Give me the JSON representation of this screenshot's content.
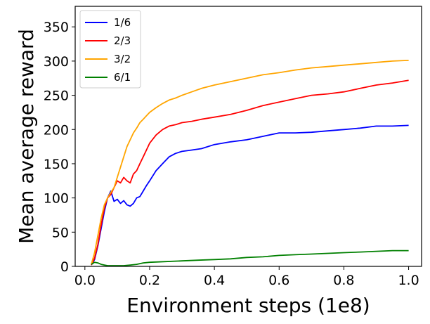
{
  "chart_data": {
    "type": "line",
    "title": "",
    "xlabel": "Environment steps (1e8)",
    "ylabel": "Mean average reward",
    "xlim": [
      -0.03,
      1.04
    ],
    "ylim": [
      0,
      380
    ],
    "xticks": [
      0.0,
      0.2,
      0.4,
      0.6,
      0.8,
      1.0
    ],
    "xtick_labels": [
      "0.0",
      "0.2",
      "0.4",
      "0.6",
      "0.8",
      "1.0"
    ],
    "yticks": [
      0,
      50,
      100,
      150,
      200,
      250,
      300,
      350
    ],
    "ytick_labels": [
      "0",
      "50",
      "100",
      "150",
      "200",
      "250",
      "300",
      "350"
    ],
    "grid": false,
    "legend_position": "top-left",
    "series": [
      {
        "name": "1/6",
        "color": "#0000ff",
        "x": [
          0.02,
          0.03,
          0.04,
          0.05,
          0.06,
          0.07,
          0.08,
          0.09,
          0.1,
          0.11,
          0.12,
          0.13,
          0.14,
          0.15,
          0.16,
          0.17,
          0.18,
          0.19,
          0.2,
          0.22,
          0.24,
          0.26,
          0.28,
          0.3,
          0.33,
          0.36,
          0.4,
          0.45,
          0.5,
          0.55,
          0.6,
          0.65,
          0.7,
          0.75,
          0.8,
          0.85,
          0.9,
          0.95,
          1.0
        ],
        "values": [
          2,
          10,
          30,
          55,
          80,
          100,
          110,
          95,
          98,
          92,
          96,
          90,
          88,
          92,
          100,
          102,
          110,
          118,
          125,
          140,
          150,
          160,
          165,
          168,
          170,
          172,
          178,
          182,
          185,
          190,
          195,
          195,
          196,
          198,
          200,
          202,
          205,
          205,
          206
        ]
      },
      {
        "name": "2/3",
        "color": "#ff0000",
        "x": [
          0.02,
          0.03,
          0.04,
          0.05,
          0.06,
          0.07,
          0.08,
          0.09,
          0.1,
          0.11,
          0.12,
          0.13,
          0.14,
          0.15,
          0.16,
          0.17,
          0.18,
          0.19,
          0.2,
          0.22,
          0.24,
          0.26,
          0.28,
          0.3,
          0.33,
          0.36,
          0.4,
          0.45,
          0.5,
          0.55,
          0.6,
          0.65,
          0.7,
          0.75,
          0.8,
          0.85,
          0.9,
          0.95,
          1.0
        ],
        "values": [
          2,
          12,
          32,
          60,
          85,
          100,
          105,
          115,
          125,
          122,
          130,
          125,
          122,
          135,
          140,
          150,
          160,
          170,
          180,
          192,
          200,
          205,
          207,
          210,
          212,
          215,
          218,
          222,
          228,
          235,
          240,
          245,
          250,
          252,
          255,
          260,
          265,
          268,
          272
        ]
      },
      {
        "name": "3/2",
        "color": "#ffa500",
        "x": [
          0.02,
          0.03,
          0.04,
          0.05,
          0.06,
          0.07,
          0.08,
          0.09,
          0.1,
          0.11,
          0.12,
          0.13,
          0.14,
          0.15,
          0.16,
          0.17,
          0.18,
          0.19,
          0.2,
          0.22,
          0.24,
          0.26,
          0.28,
          0.3,
          0.33,
          0.36,
          0.4,
          0.45,
          0.5,
          0.55,
          0.6,
          0.65,
          0.7,
          0.75,
          0.8,
          0.85,
          0.9,
          0.95,
          1.0
        ],
        "values": [
          3,
          20,
          45,
          70,
          90,
          100,
          108,
          115,
          130,
          145,
          160,
          175,
          185,
          195,
          202,
          210,
          215,
          220,
          225,
          232,
          238,
          243,
          246,
          250,
          255,
          260,
          265,
          270,
          275,
          280,
          283,
          287,
          290,
          292,
          294,
          296,
          298,
          300,
          301
        ]
      },
      {
        "name": "6/1",
        "color": "#008000",
        "x": [
          0.02,
          0.03,
          0.04,
          0.05,
          0.06,
          0.07,
          0.08,
          0.1,
          0.12,
          0.14,
          0.16,
          0.18,
          0.2,
          0.25,
          0.3,
          0.35,
          0.4,
          0.45,
          0.5,
          0.55,
          0.6,
          0.65,
          0.7,
          0.75,
          0.8,
          0.85,
          0.9,
          0.95,
          1.0
        ],
        "values": [
          3,
          6,
          5,
          3,
          2,
          1,
          1,
          1,
          1,
          2,
          3,
          5,
          6,
          7,
          8,
          9,
          10,
          11,
          13,
          14,
          16,
          17,
          18,
          19,
          20,
          21,
          22,
          23,
          23
        ]
      }
    ]
  }
}
